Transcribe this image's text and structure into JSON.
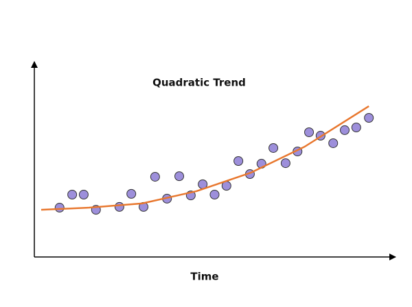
{
  "chart_data": {
    "type": "scatter",
    "title": "Quadratic Trend",
    "x_label": "Time",
    "xlim": [
      0,
      100
    ],
    "ylim": [
      0,
      100
    ],
    "series": [
      {
        "type": "scatter",
        "color": "#9d8fdb",
        "x": [
          7.0,
          10.5,
          13.7,
          17.1,
          23.6,
          26.9,
          30.3,
          33.5,
          36.8,
          40.2,
          43.4,
          46.7,
          50.0,
          53.3,
          56.6,
          59.8,
          63.0,
          66.3,
          69.7,
          73.0,
          76.2,
          79.4,
          82.9,
          86.1,
          89.3,
          92.8
        ],
        "values": [
          25.7,
          32.5,
          32.5,
          24.6,
          26.1,
          32.9,
          26.1,
          41.8,
          30.4,
          42.1,
          32.1,
          37.9,
          32.5,
          37.1,
          50.0,
          43.2,
          48.6,
          56.8,
          48.9,
          55.0,
          65.0,
          63.2,
          59.3,
          66.1,
          67.5,
          72.5
        ]
      },
      {
        "type": "line",
        "color": "#e8772e",
        "x": [
          1.9,
          15.2,
          29.9,
          45.0,
          60.0,
          75.0,
          92.8
        ],
        "values": [
          24.6,
          25.7,
          27.9,
          34.3,
          43.9,
          57.5,
          78.6
        ]
      }
    ]
  }
}
